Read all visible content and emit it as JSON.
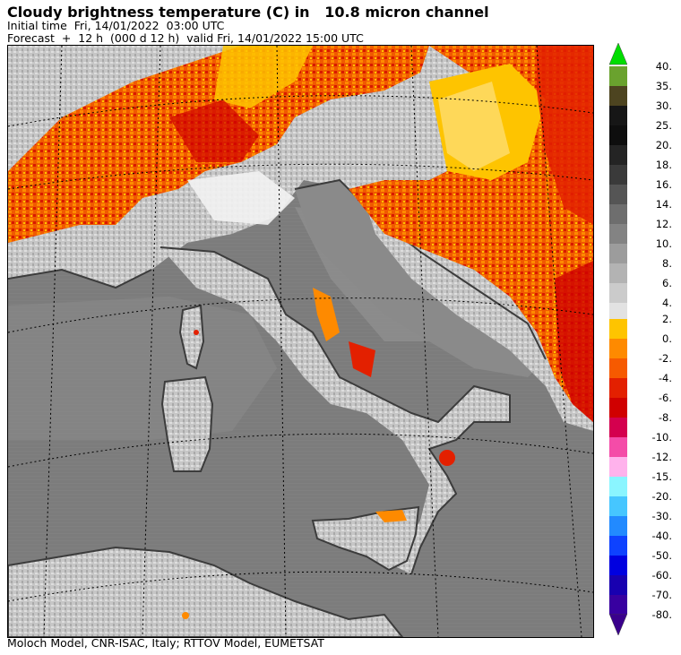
{
  "title": "Cloudy brightness temperature (C) in   10.8 micron channel",
  "initial_time": "Initial time  Fri, 14/01/2022  03:00 UTC",
  "forecast": "Forecast  +  12 h  (000 d 12 h)  valid Fri, 14/01/2022 15:00 UTC",
  "footer": "Moloch Model, CNR-ISAC, Italy; RTTOV Model, EUMETSAT",
  "colorbar": {
    "upper": [
      {
        "label": "40.",
        "color": "#6aa22e"
      },
      {
        "label": "35.",
        "color": "#4d4420"
      },
      {
        "label": "30.",
        "color": "#161616"
      },
      {
        "label": "25.",
        "color": "#0e0e0e"
      },
      {
        "label": "20.",
        "color": "#242424"
      },
      {
        "label": "18.",
        "color": "#3a3a3a"
      },
      {
        "label": "16.",
        "color": "#555555"
      },
      {
        "label": "14.",
        "color": "#6e6e6e"
      },
      {
        "label": "12.",
        "color": "#838383"
      },
      {
        "label": "10.",
        "color": "#9c9c9c"
      },
      {
        "label": "8.",
        "color": "#b3b3b3"
      },
      {
        "label": "6.",
        "color": "#cbcbcb"
      },
      {
        "label": "4.",
        "color": "#e2e2e2"
      }
    ],
    "lower": [
      {
        "label": "2.",
        "color": "#fec400"
      },
      {
        "label": "0.",
        "color": "#fe8a00"
      },
      {
        "label": "-2.",
        "color": "#f65a00"
      },
      {
        "label": "-4.",
        "color": "#e32000"
      },
      {
        "label": "-6.",
        "color": "#d00000"
      },
      {
        "label": "-8.",
        "color": "#d4004e"
      },
      {
        "label": "-10.",
        "color": "#f44ca8"
      },
      {
        "label": "-12.",
        "color": "#ffb2ec"
      },
      {
        "label": "-15.",
        "color": "#8af5ff"
      },
      {
        "label": "-20.",
        "color": "#46c6ff"
      },
      {
        "label": "-30.",
        "color": "#228aff"
      },
      {
        "label": "-40.",
        "color": "#0e42ff"
      },
      {
        "label": "-50.",
        "color": "#0000e0"
      },
      {
        "label": "-60.",
        "color": "#1800b0"
      },
      {
        "label": "-70.",
        "color": "#3800a0"
      },
      {
        "label": "-80.",
        "color": "#3800a0"
      }
    ],
    "top_arrow_color": "#00dd00",
    "bottom_arrow_color": "#3a008c"
  },
  "colors": {
    "sea": "#7c7c7c",
    "land_light": "#c8c8c8",
    "land_mid": "#a8a8a8",
    "snow_white": "#f2f2f2",
    "coast": "#3c3c3c",
    "cloud_orange": "#fe8a00",
    "cloud_yellow": "#fec400",
    "cloud_red": "#e32000",
    "cloud_darkred": "#c80000"
  }
}
